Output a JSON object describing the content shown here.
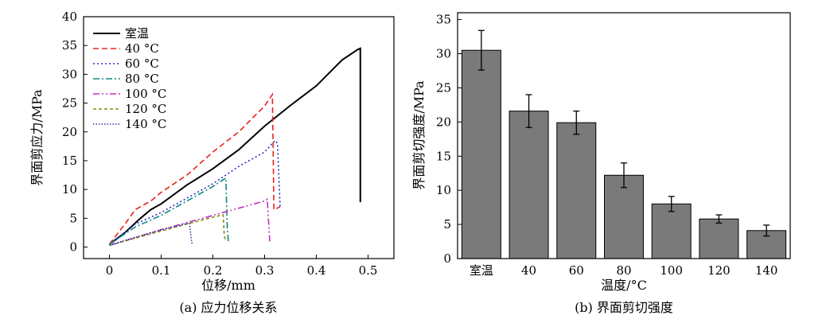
{
  "chart_data": [
    {
      "type": "line",
      "caption": "(a) 应力位移关系",
      "xlabel": "位移/mm",
      "ylabel": "界面剪应力/MPa",
      "xlim": [
        -0.05,
        0.55
      ],
      "ylim": [
        -2,
        40
      ],
      "xticks": [
        "0",
        "0.1",
        "0.2",
        "0.3",
        "0.4",
        "0.5"
      ],
      "yticks": [
        "0",
        "5",
        "10",
        "15",
        "20",
        "25",
        "30",
        "35",
        "40"
      ],
      "legend_position": "top-left",
      "series": [
        {
          "name": "室温",
          "color": "#000000",
          "dash": "solid",
          "x": [
            0,
            0.03,
            0.06,
            0.08,
            0.1,
            0.15,
            0.2,
            0.25,
            0.3,
            0.35,
            0.4,
            0.45,
            0.48,
            0.485,
            0.485
          ],
          "y": [
            0.5,
            2.5,
            5.0,
            6.5,
            7.5,
            10.8,
            13.6,
            16.9,
            21.0,
            24.6,
            28.0,
            32.5,
            34.3,
            34.5,
            7.8
          ]
        },
        {
          "name": "40 °C",
          "color": "#e8231f",
          "dash": "dashed",
          "x": [
            0,
            0.03,
            0.05,
            0.08,
            0.1,
            0.15,
            0.2,
            0.25,
            0.3,
            0.315,
            0.318,
            0.33
          ],
          "y": [
            0.5,
            4.0,
            6.5,
            8.0,
            9.5,
            12.5,
            16.5,
            20.0,
            24.5,
            26.5,
            6.5,
            7.0
          ]
        },
        {
          "name": "60 °C",
          "color": "#2b2bcc",
          "dash": "dotted",
          "x": [
            0,
            0.05,
            0.1,
            0.15,
            0.2,
            0.25,
            0.3,
            0.32,
            0.325,
            0.33
          ],
          "y": [
            0.3,
            4.0,
            6.0,
            8.5,
            11.0,
            14.0,
            16.5,
            18.5,
            18.0,
            7.0
          ]
        },
        {
          "name": "80 °C",
          "color": "#0f8a80",
          "dash": "dashdot",
          "x": [
            0,
            0.05,
            0.1,
            0.15,
            0.2,
            0.225,
            0.228,
            0.23
          ],
          "y": [
            0.5,
            3.5,
            5.5,
            8.0,
            10.5,
            12.0,
            3.0,
            1.0
          ]
        },
        {
          "name": "100 °C",
          "color": "#c030c0",
          "dash": "dashdotdot",
          "x": [
            0,
            0.1,
            0.2,
            0.3,
            0.305,
            0.31
          ],
          "y": [
            0.3,
            3.0,
            5.5,
            8.0,
            8.3,
            1.0
          ]
        },
        {
          "name": "120 °C",
          "color": "#8a8a10",
          "dash": "shortdash",
          "x": [
            0,
            0.1,
            0.2,
            0.22,
            0.222,
            0.225
          ],
          "y": [
            0.3,
            2.8,
            5.2,
            5.6,
            2.0,
            1.0
          ]
        },
        {
          "name": "140 °C",
          "color": "#3030b0",
          "dash": "finedot",
          "x": [
            0,
            0.05,
            0.1,
            0.155,
            0.158,
            0.16
          ],
          "y": [
            0.3,
            1.7,
            3.0,
            4.2,
            1.5,
            0.5
          ]
        }
      ]
    },
    {
      "type": "bar",
      "caption": "(b) 界面剪切强度",
      "xlabel": "温度/°C",
      "ylabel": "界面剪切强度/MPa",
      "ylim": [
        0,
        36
      ],
      "yticks": [
        "0",
        "5",
        "10",
        "15",
        "20",
        "25",
        "30",
        "35"
      ],
      "categories": [
        "室温",
        "40",
        "60",
        "80",
        "100",
        "120",
        "140"
      ],
      "values": [
        30.5,
        21.6,
        19.9,
        12.2,
        8.0,
        5.8,
        4.1
      ],
      "errors": [
        2.9,
        2.4,
        1.7,
        1.8,
        1.1,
        0.6,
        0.8
      ],
      "bar_color": "#7a7a7a"
    }
  ]
}
